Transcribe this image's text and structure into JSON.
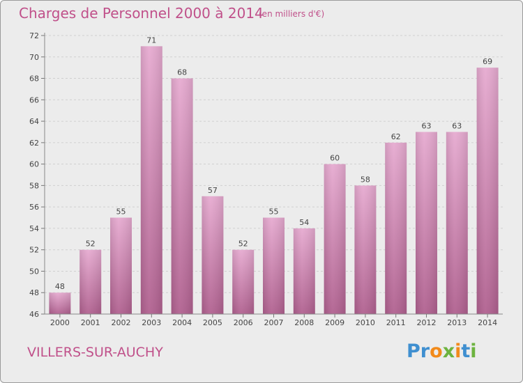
{
  "header": {
    "title": "Charges de Personnel 2000 à 2014",
    "subtitle": "(en milliers d'€)"
  },
  "footer": {
    "city": "VILLERS-SUR-AUCHY",
    "logo": [
      "P",
      "r",
      "o",
      "x",
      "i",
      "t",
      "i"
    ]
  },
  "colors": {
    "accent": "#c0508a",
    "bar_top": "#e6aad0",
    "bar_bottom": "#b0608f",
    "logo": [
      "#3f8fd0",
      "#3f8fd0",
      "#f28a1a",
      "#6db33f",
      "#f28a1a",
      "#3f8fd0",
      "#6db33f"
    ]
  },
  "chart_data": {
    "type": "bar",
    "categories": [
      "2000",
      "2001",
      "2002",
      "2003",
      "2004",
      "2005",
      "2006",
      "2007",
      "2008",
      "2009",
      "2010",
      "2011",
      "2012",
      "2013",
      "2014"
    ],
    "values": [
      48,
      52,
      55,
      71,
      68,
      57,
      52,
      55,
      54,
      60,
      58,
      62,
      63,
      63,
      69
    ],
    "ylim": [
      46,
      72
    ],
    "yticks": [
      "46",
      "48",
      "50",
      "52",
      "54",
      "56",
      "58",
      "60",
      "62",
      "64",
      "66",
      "68",
      "70",
      "72"
    ],
    "grid": true,
    "xlabel": "",
    "ylabel": ""
  }
}
